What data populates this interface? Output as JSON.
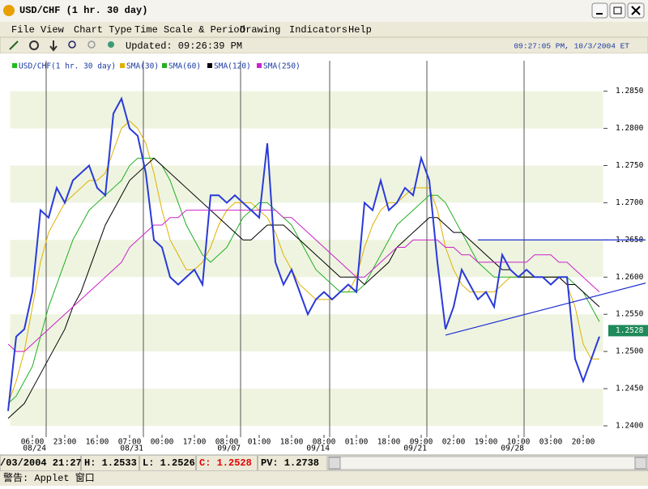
{
  "window": {
    "title": "USD/CHF (1 hr.  30 day)",
    "menu": [
      "File",
      "View",
      "Chart Type",
      "Time Scale & Period",
      "Drawing",
      "Indicators",
      "Help"
    ],
    "updated": "Updated: 09:26:39 PM",
    "clock": "09:27:05 PM, 10/3/2004 ET"
  },
  "chart_data": {
    "type": "line",
    "categories": [
      null,
      null,
      null,
      "06:00",
      null,
      null,
      null,
      "23:00",
      null,
      null,
      null,
      "16:00",
      null,
      null,
      null,
      "07:00",
      null,
      null,
      null,
      "00:00",
      null,
      null,
      null,
      "17:00",
      null,
      null,
      null,
      "08:00",
      null,
      null,
      null,
      "01:00",
      null,
      null,
      null,
      "18:00",
      null,
      null,
      null,
      "08:00",
      null,
      null,
      null,
      "01:00",
      null,
      null,
      null,
      "18:00",
      null,
      null,
      null,
      "09:00",
      null,
      null,
      null,
      "02:00",
      null,
      null,
      null,
      "19:00",
      null,
      null,
      null,
      "10:00",
      null,
      null,
      null,
      "03:00",
      null,
      null,
      null,
      "20:00",
      null,
      null
    ],
    "dates": [
      null,
      null,
      null,
      null,
      null,
      "08/24",
      null,
      null,
      null,
      null,
      null,
      null,
      null,
      null,
      null,
      null,
      null,
      "08/31",
      null,
      null,
      null,
      null,
      null,
      null,
      null,
      null,
      null,
      null,
      null,
      "09/07",
      null,
      null,
      null,
      null,
      null,
      null,
      null,
      null,
      null,
      null,
      "09/14",
      null,
      null,
      null,
      null,
      null,
      null,
      null,
      null,
      null,
      null,
      null,
      "09/21",
      null,
      null,
      null,
      null,
      null,
      null,
      null,
      null,
      null,
      null,
      null,
      "09/28",
      null,
      null,
      null,
      null,
      null,
      null,
      null,
      null,
      null
    ],
    "series": [
      {
        "name": "USD/CHF(1 hr.  30 day)",
        "color": "#2a3ad8",
        "legend_color": "#22bb22",
        "values": [
          1.242,
          1.252,
          1.253,
          1.258,
          1.269,
          1.268,
          1.272,
          1.27,
          1.273,
          1.274,
          1.275,
          1.272,
          1.271,
          1.282,
          1.284,
          1.28,
          1.279,
          1.274,
          1.265,
          1.264,
          1.26,
          1.259,
          1.26,
          1.261,
          1.259,
          1.271,
          1.271,
          1.27,
          1.271,
          1.27,
          1.269,
          1.268,
          1.278,
          1.262,
          1.259,
          1.261,
          1.258,
          1.255,
          1.257,
          1.258,
          1.257,
          1.258,
          1.259,
          1.258,
          1.27,
          1.269,
          1.273,
          1.269,
          1.27,
          1.272,
          1.271,
          1.276,
          1.273,
          1.262,
          1.253,
          1.256,
          1.261,
          1.259,
          1.257,
          1.258,
          1.256,
          1.263,
          1.261,
          1.26,
          1.261,
          1.26,
          1.26,
          1.259,
          1.26,
          1.26,
          1.249,
          1.246,
          1.249,
          1.252
        ]
      },
      {
        "name": "SMA(30)",
        "color": "#e0b000",
        "values": [
          1.243,
          1.246,
          1.25,
          1.256,
          1.262,
          1.266,
          1.268,
          1.27,
          1.271,
          1.272,
          1.273,
          1.273,
          1.274,
          1.277,
          1.28,
          1.281,
          1.28,
          1.278,
          1.274,
          1.269,
          1.265,
          1.263,
          1.261,
          1.261,
          1.262,
          1.264,
          1.267,
          1.269,
          1.27,
          1.27,
          1.27,
          1.269,
          1.268,
          1.266,
          1.263,
          1.261,
          1.259,
          1.258,
          1.257,
          1.257,
          1.257,
          1.258,
          1.258,
          1.26,
          1.264,
          1.267,
          1.269,
          1.27,
          1.27,
          1.271,
          1.272,
          1.272,
          1.272,
          1.269,
          1.264,
          1.261,
          1.259,
          1.258,
          1.258,
          1.258,
          1.258,
          1.259,
          1.26,
          1.26,
          1.26,
          1.26,
          1.26,
          1.26,
          1.26,
          1.259,
          1.256,
          1.251,
          1.249,
          1.249
        ]
      },
      {
        "name": "SMA(60)",
        "color": "#22b022",
        "values": [
          1.243,
          1.244,
          1.246,
          1.248,
          1.252,
          1.256,
          1.259,
          1.262,
          1.265,
          1.267,
          1.269,
          1.27,
          1.271,
          1.272,
          1.273,
          1.275,
          1.276,
          1.276,
          1.276,
          1.275,
          1.273,
          1.27,
          1.267,
          1.265,
          1.263,
          1.262,
          1.263,
          1.264,
          1.266,
          1.268,
          1.269,
          1.27,
          1.27,
          1.269,
          1.268,
          1.267,
          1.265,
          1.263,
          1.261,
          1.26,
          1.259,
          1.258,
          1.258,
          1.258,
          1.259,
          1.261,
          1.263,
          1.265,
          1.267,
          1.268,
          1.269,
          1.27,
          1.271,
          1.271,
          1.27,
          1.268,
          1.266,
          1.264,
          1.262,
          1.261,
          1.26,
          1.26,
          1.26,
          1.26,
          1.26,
          1.26,
          1.26,
          1.26,
          1.26,
          1.26,
          1.259,
          1.258,
          1.256,
          1.254
        ]
      },
      {
        "name": "SMA(120)",
        "color": "#000000",
        "values": [
          1.241,
          1.242,
          1.243,
          1.245,
          1.247,
          1.249,
          1.251,
          1.253,
          1.256,
          1.258,
          1.261,
          1.264,
          1.267,
          1.269,
          1.271,
          1.273,
          1.274,
          1.275,
          1.276,
          1.275,
          1.274,
          1.273,
          1.272,
          1.271,
          1.27,
          1.269,
          1.268,
          1.267,
          1.266,
          1.265,
          1.265,
          1.266,
          1.267,
          1.267,
          1.267,
          1.266,
          1.265,
          1.264,
          1.263,
          1.262,
          1.261,
          1.26,
          1.26,
          1.26,
          1.259,
          1.26,
          1.261,
          1.262,
          1.264,
          1.265,
          1.266,
          1.267,
          1.268,
          1.268,
          1.267,
          1.266,
          1.266,
          1.265,
          1.264,
          1.263,
          1.262,
          1.261,
          1.261,
          1.26,
          1.26,
          1.26,
          1.26,
          1.26,
          1.26,
          1.259,
          1.259,
          1.258,
          1.257,
          1.256
        ]
      },
      {
        "name": "SMA(250)",
        "color": "#cc22cc",
        "values": [
          1.251,
          1.25,
          1.25,
          1.251,
          1.252,
          1.253,
          1.254,
          1.255,
          1.256,
          1.257,
          1.258,
          1.259,
          1.26,
          1.261,
          1.262,
          1.264,
          1.265,
          1.266,
          1.267,
          1.267,
          1.268,
          1.268,
          1.269,
          1.269,
          1.269,
          1.269,
          1.269,
          1.269,
          1.269,
          1.269,
          1.269,
          1.269,
          1.269,
          1.269,
          1.268,
          1.268,
          1.267,
          1.266,
          1.265,
          1.264,
          1.263,
          1.262,
          1.261,
          1.26,
          1.26,
          1.261,
          1.262,
          1.263,
          1.264,
          1.264,
          1.265,
          1.265,
          1.265,
          1.265,
          1.264,
          1.264,
          1.263,
          1.263,
          1.262,
          1.262,
          1.262,
          1.262,
          1.262,
          1.262,
          1.262,
          1.263,
          1.263,
          1.263,
          1.262,
          1.262,
          1.261,
          1.26,
          1.259,
          1.258
        ]
      }
    ],
    "trend_lines": [
      {
        "color": "#2030d0",
        "values": [
          1.265,
          1.265
        ]
      },
      {
        "color": "#2030d0",
        "values": [
          1.2522,
          1.2592
        ]
      }
    ],
    "last_price": {
      "value": 1.2528,
      "label": "1.2528"
    },
    "ylim": [
      1.2388,
      1.2891
    ],
    "yticks": [
      {
        "value": 1.24,
        "label": "1.2400"
      },
      {
        "value": 1.245,
        "label": "1.2450"
      },
      {
        "value": 1.25,
        "label": "1.2500"
      },
      {
        "value": 1.255,
        "label": "1.2550"
      },
      {
        "value": 1.26,
        "label": "1.2600"
      },
      {
        "value": 1.265,
        "label": "1.2650"
      },
      {
        "value": 1.27,
        "label": "1.2700"
      },
      {
        "value": 1.275,
        "label": "1.2750"
      },
      {
        "value": 1.28,
        "label": "1.2800"
      },
      {
        "value": 1.285,
        "label": "1.2850"
      }
    ],
    "grid": true,
    "legend": "top-left"
  },
  "status_bar": {
    "datetime": "/03/2004 21:27",
    "high": "H: 1.2533",
    "low": "L: 1.2526",
    "close": "C: 1.2528",
    "prev": "PV: 1.2738"
  },
  "footer": "警告: Applet 窗口"
}
